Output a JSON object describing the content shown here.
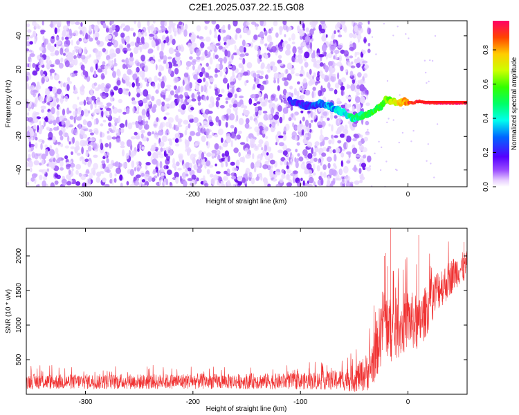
{
  "title": "C2E1.2025.037.22.15.G08",
  "chart_data": [
    {
      "type": "heatmap",
      "xlabel": "Height of straight line (km)",
      "ylabel": "Frequency (Hz)",
      "xlim": [
        -355,
        55
      ],
      "ylim": [
        -50,
        49
      ],
      "xticks": [
        -300,
        -200,
        -100,
        0
      ],
      "yticks": [
        -40,
        -20,
        0,
        20,
        40
      ],
      "colorbar": {
        "label": "Normalized spectral amplitude",
        "ticks": [
          "0.0",
          "0.2",
          "0.4",
          "0.6",
          "0.8"
        ],
        "range": [
          0,
          0.97
        ]
      },
      "noise_region_x": [
        -355,
        -42
      ],
      "signal_track": {
        "x": [
          -110,
          -90,
          -80,
          -70,
          -60,
          -55,
          -50,
          -45,
          -40,
          -35,
          -30,
          -25,
          -20,
          -15,
          -10,
          -5,
          0,
          5,
          10,
          20,
          30,
          40,
          55
        ],
        "y": [
          1,
          -2,
          0,
          -3,
          -6,
          -8,
          -9,
          -8,
          -7,
          -6,
          -4,
          -2,
          2,
          1,
          0,
          1,
          0,
          0,
          1,
          0,
          0,
          0,
          0
        ],
        "amplitude": [
          0.2,
          0.25,
          0.3,
          0.35,
          0.4,
          0.45,
          0.45,
          0.5,
          0.5,
          0.55,
          0.55,
          0.6,
          0.6,
          0.7,
          0.75,
          0.8,
          0.9,
          0.95,
          0.95,
          0.97,
          0.97,
          0.97,
          0.97
        ]
      }
    },
    {
      "type": "line",
      "xlabel": "Height of straight line (km)",
      "ylabel": "SNR (10 * v/v)",
      "xlim": [
        -355,
        55
      ],
      "ylim": [
        0,
        2400
      ],
      "xticks": [
        -300,
        -200,
        -100,
        0
      ],
      "yticks": [
        500,
        1000,
        1500,
        2000
      ],
      "series": [
        {
          "color": "#f03232",
          "x": [
            -355,
            -320,
            -300,
            -280,
            -260,
            -240,
            -220,
            -200,
            -180,
            -160,
            -140,
            -120,
            -100,
            -80,
            -70,
            -60,
            -50,
            -45,
            -40,
            -35,
            -30,
            -25,
            -22,
            -20,
            -15,
            -10,
            -5,
            0,
            5,
            10,
            15,
            20,
            25,
            30,
            35,
            40,
            45,
            50,
            55
          ],
          "y": [
            185,
            180,
            185,
            180,
            185,
            180,
            185,
            190,
            185,
            185,
            190,
            185,
            190,
            195,
            200,
            210,
            230,
            260,
            300,
            380,
            600,
            900,
            1200,
            1000,
            900,
            950,
            1000,
            1100,
            1050,
            1000,
            1150,
            1300,
            1450,
            1550,
            1600,
            1700,
            1780,
            1820,
            1850
          ],
          "noise_amplitude": [
            110,
            110,
            110,
            110,
            110,
            110,
            110,
            115,
            110,
            110,
            115,
            115,
            120,
            130,
            140,
            160,
            200,
            220,
            260,
            320,
            400,
            500,
            500,
            500,
            450,
            450,
            450,
            420,
            420,
            400,
            380,
            350,
            320,
            300,
            280,
            260,
            240,
            230,
            220
          ],
          "spikes": [
            {
              "x": -22,
              "y": 2000
            },
            {
              "x": -19,
              "y": 1850
            },
            {
              "x": -16,
              "y": 2420
            },
            {
              "x": 10,
              "y": 2300
            },
            {
              "x": 52,
              "y": 2200
            }
          ]
        }
      ]
    }
  ]
}
